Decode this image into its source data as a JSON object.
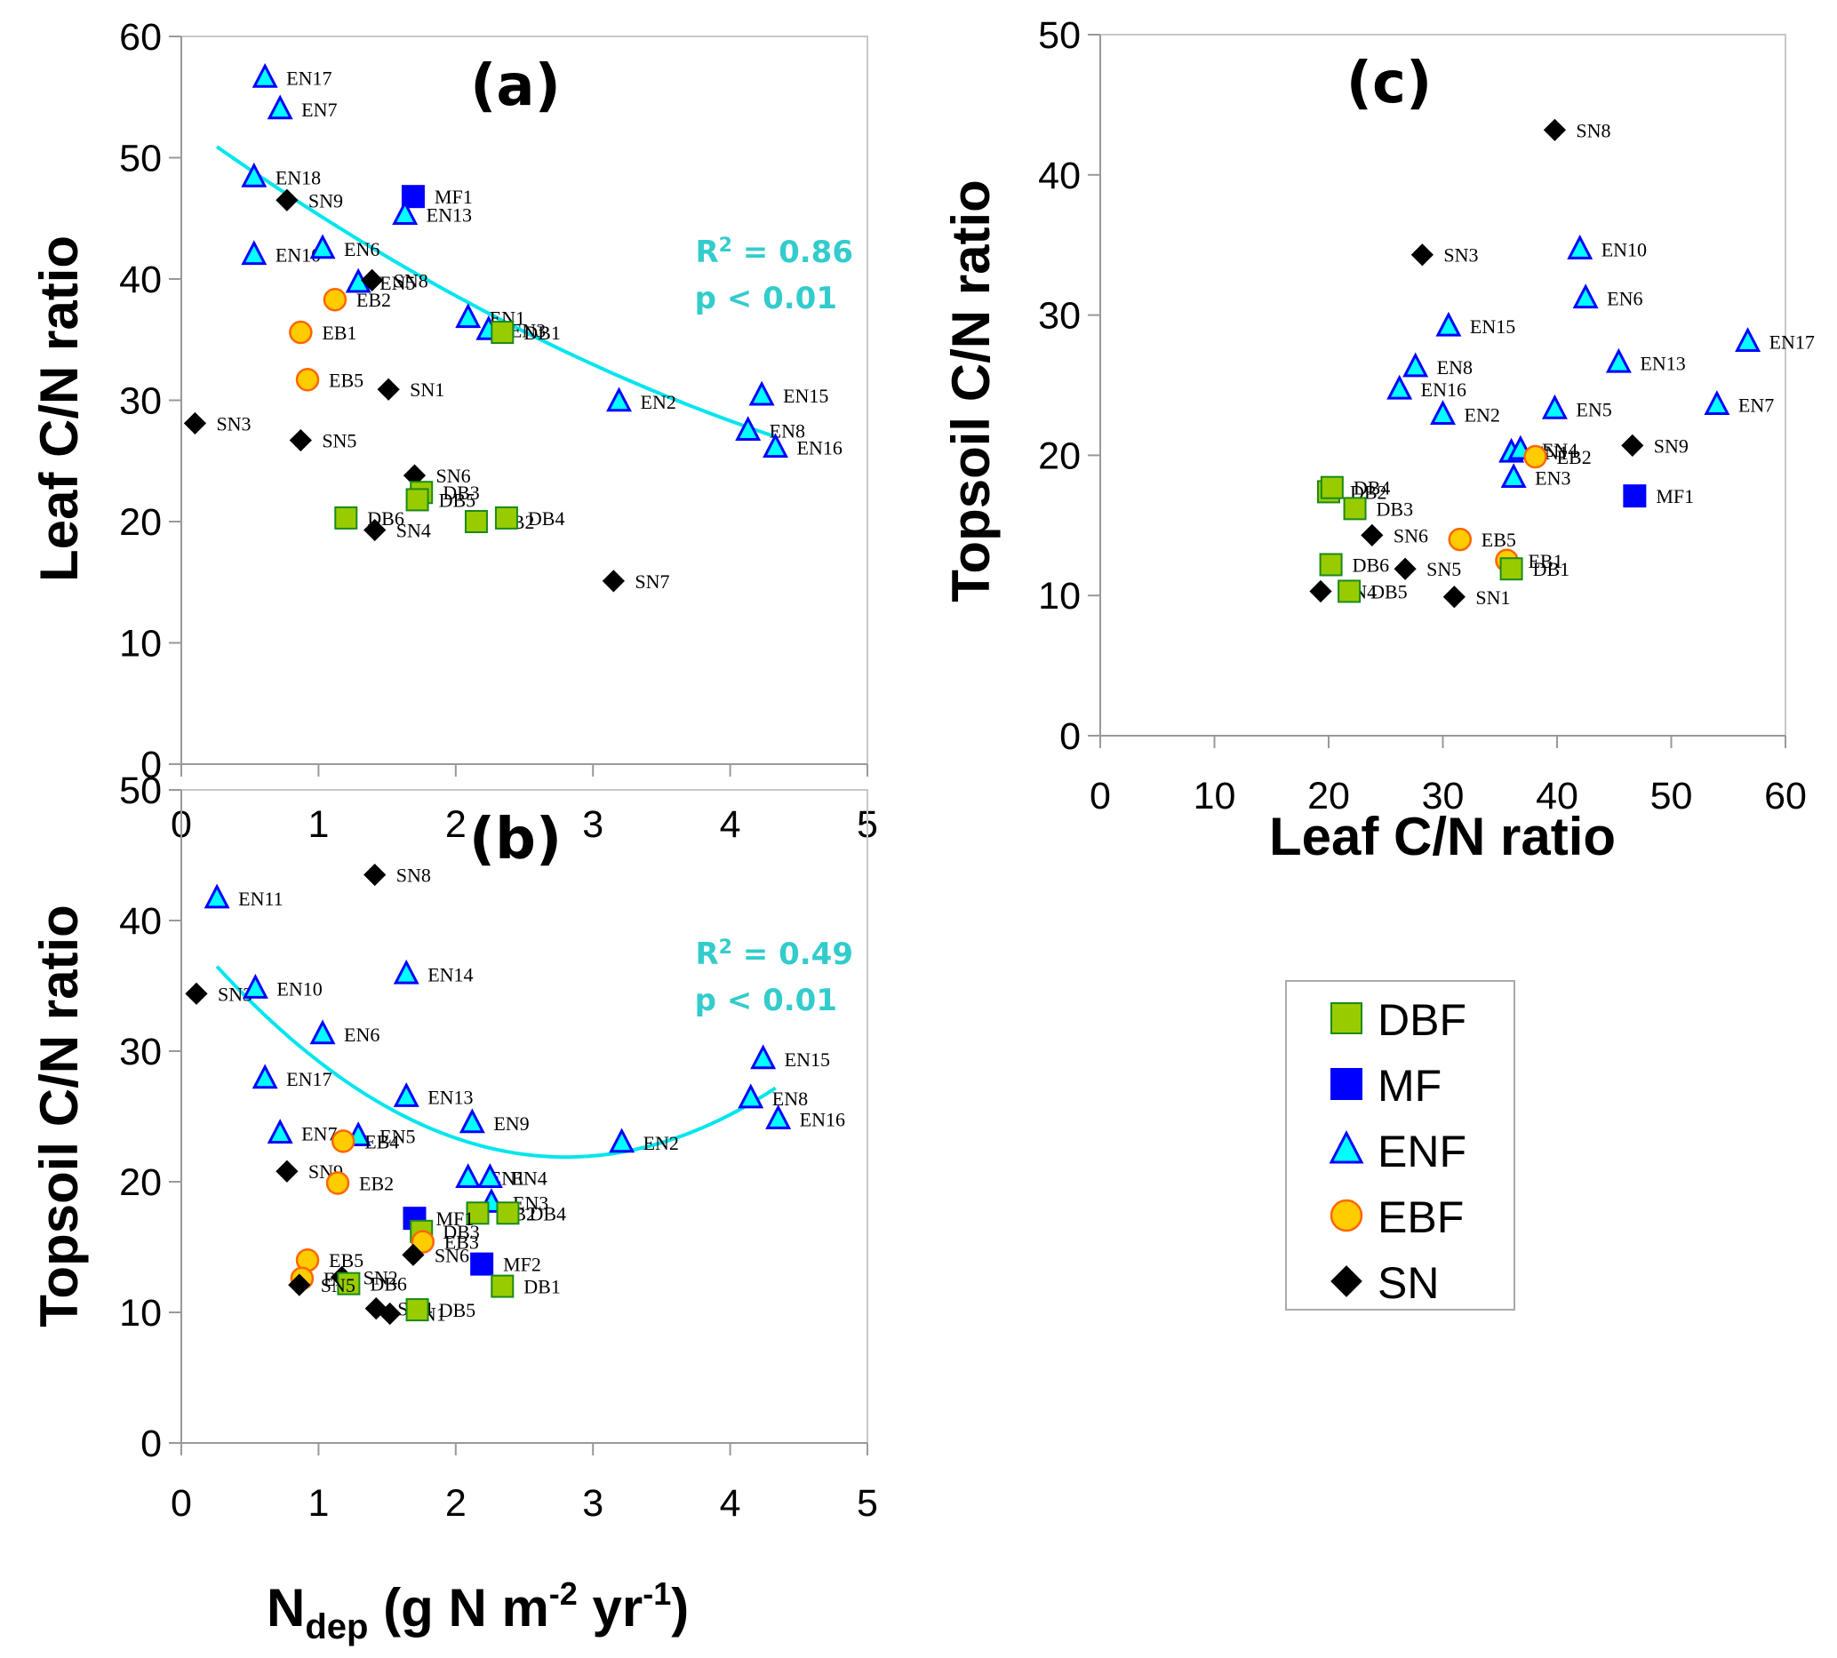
{
  "colors": {
    "DBF": {
      "fill": "#99cc00",
      "stroke": "#1a8a1a"
    },
    "MF": {
      "fill": "#0000ff",
      "stroke": "#0000ff"
    },
    "ENF": {
      "fill": "#00ffff",
      "stroke": "#0000ff"
    },
    "EBF": {
      "fill": "#ffcc00",
      "stroke": "#ff6600"
    },
    "SN": {
      "fill": "#000000",
      "stroke": "#000000"
    },
    "fit": "#00e5ee",
    "stat": "#33cccc",
    "axis": "#999999"
  },
  "legend": {
    "items": [
      {
        "key": "DBF",
        "label": "DBF",
        "marker": "square"
      },
      {
        "key": "MF",
        "label": "MF",
        "marker": "square"
      },
      {
        "key": "ENF",
        "label": "ENF",
        "marker": "triangle"
      },
      {
        "key": "EBF",
        "label": "EBF",
        "marker": "circle"
      },
      {
        "key": "SN",
        "label": "SN",
        "marker": "diamond"
      }
    ]
  },
  "chart_data": [
    {
      "id": "a",
      "type": "scatter",
      "panel_label": "(a)",
      "xlabel": "",
      "ylabel": "Leaf C/N ratio",
      "xlim": [
        0,
        5
      ],
      "ylim": [
        0,
        60
      ],
      "xticks": [
        0,
        1,
        2,
        3,
        4,
        5
      ],
      "yticks": [
        0,
        10,
        20,
        30,
        40,
        50,
        60
      ],
      "grid": false,
      "fit": {
        "type": "quadratic",
        "coef": [
          0.509,
          -8.21,
          53.0
        ],
        "x_range": [
          0.26,
          4.33
        ],
        "r2_text": "0.86",
        "p_text": "p < 0.01"
      },
      "points": [
        {
          "label": "EN17",
          "group": "ENF",
          "x": 0.61,
          "y": 56.6
        },
        {
          "label": "EN7",
          "group": "ENF",
          "x": 0.72,
          "y": 54.0
        },
        {
          "label": "EN18",
          "group": "ENF",
          "x": 0.53,
          "y": 48.4
        },
        {
          "label": "SN9",
          "group": "SN",
          "x": 0.77,
          "y": 46.5
        },
        {
          "label": "MF1",
          "group": "MF",
          "x": 1.69,
          "y": 46.8
        },
        {
          "label": "EN13",
          "group": "ENF",
          "x": 1.63,
          "y": 45.3
        },
        {
          "label": "EN10",
          "group": "ENF",
          "x": 0.53,
          "y": 42.0
        },
        {
          "label": "EN6",
          "group": "ENF",
          "x": 1.03,
          "y": 42.5
        },
        {
          "label": "EN5",
          "group": "ENF",
          "x": 1.29,
          "y": 39.7
        },
        {
          "label": "SN8",
          "group": "SN",
          "x": 1.39,
          "y": 39.9
        },
        {
          "label": "EB2",
          "group": "EBF",
          "x": 1.12,
          "y": 38.3
        },
        {
          "label": "EB1",
          "group": "EBF",
          "x": 0.87,
          "y": 35.6
        },
        {
          "label": "EB5",
          "group": "EBF",
          "x": 0.92,
          "y": 31.7
        },
        {
          "label": "SN1",
          "group": "SN",
          "x": 1.51,
          "y": 30.9
        },
        {
          "label": "SN3",
          "group": "SN",
          "x": 0.1,
          "y": 28.1
        },
        {
          "label": "SN5",
          "group": "SN",
          "x": 0.87,
          "y": 26.7
        },
        {
          "label": "EN1",
          "group": "ENF",
          "x": 2.09,
          "y": 36.8
        },
        {
          "label": "EN3",
          "group": "ENF",
          "x": 2.24,
          "y": 35.8
        },
        {
          "label": "DB1",
          "group": "DBF",
          "x": 2.34,
          "y": 35.6
        },
        {
          "label": "EN2",
          "group": "ENF",
          "x": 3.19,
          "y": 29.9
        },
        {
          "label": "EN15",
          "group": "ENF",
          "x": 4.23,
          "y": 30.4
        },
        {
          "label": "EN8",
          "group": "ENF",
          "x": 4.13,
          "y": 27.5
        },
        {
          "label": "EN16",
          "group": "ENF",
          "x": 4.33,
          "y": 26.1
        },
        {
          "label": "SN6",
          "group": "SN",
          "x": 1.7,
          "y": 23.8
        },
        {
          "label": "DB3",
          "group": "DBF",
          "x": 1.75,
          "y": 22.4
        },
        {
          "label": "DB5",
          "group": "DBF",
          "x": 1.72,
          "y": 21.8
        },
        {
          "label": "DB6",
          "group": "DBF",
          "x": 1.2,
          "y": 20.3
        },
        {
          "label": "SN4",
          "group": "SN",
          "x": 1.41,
          "y": 19.3
        },
        {
          "label": "DB2",
          "group": "DBF",
          "x": 2.15,
          "y": 20.0
        },
        {
          "label": "DB4",
          "group": "DBF",
          "x": 2.37,
          "y": 20.3
        },
        {
          "label": "SN7",
          "group": "SN",
          "x": 3.15,
          "y": 15.1
        }
      ]
    },
    {
      "id": "b",
      "type": "scatter",
      "panel_label": "(b)",
      "xlabel": "N_dep (g N m^-2 yr^-1)",
      "ylabel": "Topsoil C/N ratio",
      "xlim": [
        0,
        5
      ],
      "ylim": [
        0,
        50
      ],
      "xticks": [
        0,
        1,
        2,
        3,
        4,
        5
      ],
      "yticks": [
        0,
        10,
        20,
        30,
        40,
        50
      ],
      "grid": false,
      "fit": {
        "type": "quadratic",
        "coef": [
          2.26,
          -12.66,
          39.62
        ],
        "x_range": [
          0.26,
          4.33
        ],
        "r2_text": "0.49",
        "p_text": "p < 0.01"
      },
      "points": [
        {
          "label": "SN8",
          "group": "SN",
          "x": 1.41,
          "y": 43.5
        },
        {
          "label": "EN11",
          "group": "ENF",
          "x": 0.26,
          "y": 41.7
        },
        {
          "label": "EN14",
          "group": "ENF",
          "x": 1.64,
          "y": 35.9
        },
        {
          "label": "SN3",
          "group": "SN",
          "x": 0.11,
          "y": 34.4
        },
        {
          "label": "EN10",
          "group": "ENF",
          "x": 0.54,
          "y": 34.8
        },
        {
          "label": "EN6",
          "group": "ENF",
          "x": 1.03,
          "y": 31.3
        },
        {
          "label": "EN17",
          "group": "ENF",
          "x": 0.61,
          "y": 27.9
        },
        {
          "label": "EN13",
          "group": "ENF",
          "x": 1.64,
          "y": 26.5
        },
        {
          "label": "EN9",
          "group": "ENF",
          "x": 2.12,
          "y": 24.5
        },
        {
          "label": "EN7",
          "group": "ENF",
          "x": 0.72,
          "y": 23.7
        },
        {
          "label": "EN5",
          "group": "ENF",
          "x": 1.29,
          "y": 23.5
        },
        {
          "label": "EB4",
          "group": "EBF",
          "x": 1.18,
          "y": 23.1
        },
        {
          "label": "SN9",
          "group": "SN",
          "x": 0.77,
          "y": 20.8
        },
        {
          "label": "EB2",
          "group": "EBF",
          "x": 1.14,
          "y": 19.9
        },
        {
          "label": "EN1",
          "group": "ENF",
          "x": 2.09,
          "y": 20.3
        },
        {
          "label": "EN4",
          "group": "ENF",
          "x": 2.25,
          "y": 20.3
        },
        {
          "label": "EN3",
          "group": "ENF",
          "x": 2.26,
          "y": 18.4
        },
        {
          "label": "DB2",
          "group": "DBF",
          "x": 2.16,
          "y": 17.6
        },
        {
          "label": "DB4",
          "group": "DBF",
          "x": 2.38,
          "y": 17.6
        },
        {
          "label": "MF1",
          "group": "MF",
          "x": 1.7,
          "y": 17.2
        },
        {
          "label": "DB3",
          "group": "DBF",
          "x": 1.75,
          "y": 16.2
        },
        {
          "label": "EB3",
          "group": "EBF",
          "x": 1.76,
          "y": 15.4
        },
        {
          "label": "SN6",
          "group": "SN",
          "x": 1.69,
          "y": 14.4
        },
        {
          "label": "MF2",
          "group": "MF",
          "x": 2.19,
          "y": 13.7
        },
        {
          "label": "DB1",
          "group": "DBF",
          "x": 2.34,
          "y": 12.0
        },
        {
          "label": "EB5",
          "group": "EBF",
          "x": 0.92,
          "y": 14.0
        },
        {
          "label": "EB1",
          "group": "EBF",
          "x": 0.88,
          "y": 12.6
        },
        {
          "label": "SN2",
          "group": "SN",
          "x": 1.17,
          "y": 12.7
        },
        {
          "label": "DB6",
          "group": "DBF",
          "x": 1.22,
          "y": 12.2
        },
        {
          "label": "SN5",
          "group": "SN",
          "x": 0.86,
          "y": 12.1
        },
        {
          "label": "SN4",
          "group": "SN",
          "x": 1.42,
          "y": 10.3
        },
        {
          "label": "SN1",
          "group": "SN",
          "x": 1.52,
          "y": 9.9
        },
        {
          "label": "DB5",
          "group": "DBF",
          "x": 1.72,
          "y": 10.2
        },
        {
          "label": "EN15",
          "group": "ENF",
          "x": 4.24,
          "y": 29.4
        },
        {
          "label": "EN8",
          "group": "ENF",
          "x": 4.15,
          "y": 26.4
        },
        {
          "label": "EN16",
          "group": "ENF",
          "x": 4.35,
          "y": 24.8
        },
        {
          "label": "EN2",
          "group": "ENF",
          "x": 3.21,
          "y": 23.0
        }
      ]
    },
    {
      "id": "c",
      "type": "scatter",
      "panel_label": "(c)",
      "xlabel": "Leaf C/N ratio",
      "ylabel": "Topsoil C/N ratio",
      "xlim": [
        0,
        60
      ],
      "ylim": [
        0,
        50
      ],
      "xticks": [
        0,
        10,
        20,
        30,
        40,
        50,
        60
      ],
      "yticks": [
        0,
        10,
        20,
        30,
        40,
        50
      ],
      "grid": false,
      "points": [
        {
          "label": "SN8",
          "group": "SN",
          "x": 39.8,
          "y": 43.2
        },
        {
          "label": "SN3",
          "group": "SN",
          "x": 28.2,
          "y": 34.3
        },
        {
          "label": "EN10",
          "group": "ENF",
          "x": 42.0,
          "y": 34.7
        },
        {
          "label": "EN6",
          "group": "ENF",
          "x": 42.5,
          "y": 31.2
        },
        {
          "label": "EN15",
          "group": "ENF",
          "x": 30.5,
          "y": 29.2
        },
        {
          "label": "EN17",
          "group": "ENF",
          "x": 56.7,
          "y": 28.1
        },
        {
          "label": "EN13",
          "group": "ENF",
          "x": 45.4,
          "y": 26.6
        },
        {
          "label": "EN8",
          "group": "ENF",
          "x": 27.6,
          "y": 26.3
        },
        {
          "label": "EN16",
          "group": "ENF",
          "x": 26.2,
          "y": 24.7
        },
        {
          "label": "EN2",
          "group": "ENF",
          "x": 30.0,
          "y": 22.9
        },
        {
          "label": "EN5",
          "group": "ENF",
          "x": 39.8,
          "y": 23.3
        },
        {
          "label": "EN7",
          "group": "ENF",
          "x": 54.0,
          "y": 23.6
        },
        {
          "label": "SN9",
          "group": "SN",
          "x": 46.6,
          "y": 20.7
        },
        {
          "label": "EN1",
          "group": "ENF",
          "x": 36.0,
          "y": 20.2
        },
        {
          "label": "EN4",
          "group": "ENF",
          "x": 36.8,
          "y": 20.4
        },
        {
          "label": "EB2",
          "group": "EBF",
          "x": 38.1,
          "y": 19.9
        },
        {
          "label": "EN3",
          "group": "ENF",
          "x": 36.2,
          "y": 18.4
        },
        {
          "label": "MF1",
          "group": "MF",
          "x": 46.8,
          "y": 17.1
        },
        {
          "label": "DB2",
          "group": "DBF",
          "x": 20.0,
          "y": 17.4
        },
        {
          "label": "DB4",
          "group": "DBF",
          "x": 20.3,
          "y": 17.7
        },
        {
          "label": "DB3",
          "group": "DBF",
          "x": 22.3,
          "y": 16.2
        },
        {
          "label": "SN6",
          "group": "SN",
          "x": 23.8,
          "y": 14.3
        },
        {
          "label": "EB5",
          "group": "EBF",
          "x": 31.5,
          "y": 14.0
        },
        {
          "label": "DB6",
          "group": "DBF",
          "x": 20.2,
          "y": 12.2
        },
        {
          "label": "SN5",
          "group": "SN",
          "x": 26.7,
          "y": 11.9
        },
        {
          "label": "EB1",
          "group": "EBF",
          "x": 35.6,
          "y": 12.5
        },
        {
          "label": "DB1",
          "group": "DBF",
          "x": 36.0,
          "y": 11.9
        },
        {
          "label": "SN4",
          "group": "SN",
          "x": 19.3,
          "y": 10.3
        },
        {
          "label": "DB5",
          "group": "DBF",
          "x": 21.8,
          "y": 10.3
        },
        {
          "label": "SN1",
          "group": "SN",
          "x": 31.0,
          "y": 9.9
        }
      ]
    }
  ]
}
